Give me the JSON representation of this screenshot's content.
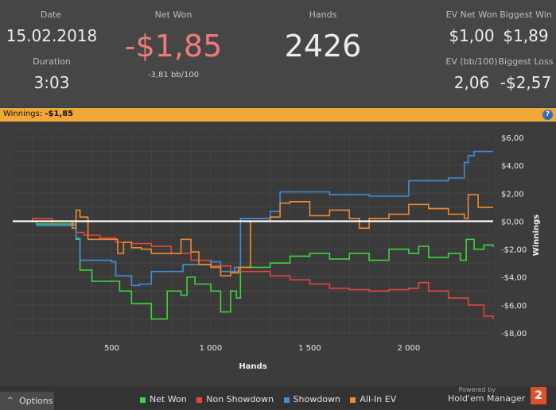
{
  "stats": {
    "date_label": "Date",
    "date_value": "15.02.2018",
    "duration_label": "Duration",
    "duration_value": "3:03",
    "net_won_label": "Net Won",
    "net_won_value": "-$1,85",
    "net_won_sub": "-3,81 bb/100",
    "hands_label": "Hands",
    "hands_value": "2426",
    "ev_net_won_label": "EV Net Won",
    "ev_net_won_value": "$1,00",
    "biggest_win_label": "Biggest Win",
    "biggest_win_value": "$1,89",
    "ev_bb_label": "EV (bb/100)",
    "ev_bb_value": "2,06",
    "biggest_loss_label": "Biggest Loss",
    "biggest_loss_value": "-$2,57"
  },
  "bar": {
    "title": "Winnings:",
    "value": "-$1,85",
    "help": "?"
  },
  "colors": {
    "net_won": "#3fd33f",
    "non_showdown": "#e8453c",
    "showdown": "#3a8fe0",
    "all_in_ev": "#ef8b2c",
    "net_won_value": "#f07a7a",
    "bar": "#f0a838"
  },
  "chart_data": {
    "type": "line",
    "title": "Winnings",
    "xlabel": "Hands",
    "ylabel": "Winnings",
    "xlim": [
      0,
      2426
    ],
    "ylim": [
      -8,
      6
    ],
    "x_ticks": [
      500,
      1000,
      1500,
      2000
    ],
    "x_tick_labels": [
      "500",
      "1 000",
      "1 500",
      "2 000"
    ],
    "y_ticks": [
      6,
      4,
      2,
      0,
      -2,
      -4,
      -6,
      -8
    ],
    "y_tick_labels": [
      "$6,00",
      "$4,00",
      "$2,00",
      "$0,00",
      "-$2,00",
      "-$4,00",
      "-$6,00",
      "-$8,00"
    ],
    "series": [
      {
        "name": "Net Won",
        "color": "#3fd33f",
        "x": [
          0,
          120,
          320,
          340,
          400,
          540,
          600,
          700,
          780,
          850,
          880,
          920,
          1000,
          1050,
          1100,
          1130,
          1150,
          1300,
          1400,
          1500,
          1600,
          1700,
          1800,
          1900,
          2000,
          2050,
          2100,
          2200,
          2260,
          2290,
          2330,
          2380,
          2426
        ],
        "y": [
          0,
          -0.2,
          -1.3,
          -3.5,
          -4.3,
          -5.0,
          -5.9,
          -7.0,
          -5.0,
          -5.3,
          -4.0,
          -4.5,
          -5.0,
          -6.5,
          -5.0,
          -5.5,
          -3.3,
          -3.0,
          -2.5,
          -2.3,
          -2.7,
          -2.3,
          -2.8,
          -2.0,
          -2.3,
          -1.8,
          -2.6,
          -2.3,
          -2.8,
          -1.3,
          -2.0,
          -1.7,
          -1.85
        ]
      },
      {
        "name": "Non Showdown",
        "color": "#e8453c",
        "x": [
          0,
          100,
          200,
          320,
          360,
          440,
          520,
          600,
          700,
          800,
          900,
          1000,
          1100,
          1200,
          1300,
          1400,
          1500,
          1600,
          1700,
          1800,
          1900,
          2000,
          2050,
          2100,
          2200,
          2300,
          2380,
          2426
        ],
        "y": [
          0,
          0.2,
          -0.3,
          -0.8,
          -1.0,
          -1.2,
          -1.5,
          -1.6,
          -1.8,
          -2.3,
          -2.8,
          -3.2,
          -3.6,
          -3.6,
          -3.9,
          -4.2,
          -4.5,
          -4.8,
          -4.9,
          -5.0,
          -4.9,
          -4.8,
          -4.4,
          -5.0,
          -5.5,
          -6.0,
          -6.8,
          -7.0
        ]
      },
      {
        "name": "Showdown",
        "color": "#3a8fe0",
        "x": [
          0,
          120,
          320,
          340,
          500,
          520,
          560,
          600,
          640,
          700,
          860,
          900,
          1000,
          1050,
          1120,
          1150,
          1300,
          1350,
          1400,
          1600,
          1800,
          2000,
          2100,
          2200,
          2280,
          2300,
          2330,
          2426
        ],
        "y": [
          0,
          -0.3,
          -1.2,
          -2.8,
          -2.9,
          -3.9,
          -3.9,
          -4.6,
          -4.5,
          -3.6,
          -3.1,
          -3.1,
          -2.9,
          -3.6,
          -3.3,
          0.2,
          0.7,
          2.1,
          2.1,
          1.9,
          1.8,
          2.9,
          2.9,
          3.1,
          4.2,
          4.7,
          5.0,
          5.0
        ]
      },
      {
        "name": "All-In EV",
        "color": "#ef8b2c",
        "x": [
          0,
          120,
          300,
          320,
          340,
          380,
          500,
          530,
          560,
          600,
          650,
          700,
          850,
          900,
          940,
          1000,
          1050,
          1100,
          1140,
          1200,
          1300,
          1350,
          1400,
          1500,
          1600,
          1700,
          1750,
          1800,
          1900,
          2000,
          2100,
          2200,
          2280,
          2300,
          2350,
          2426
        ],
        "y": [
          0,
          0,
          -0.5,
          0.8,
          0.3,
          -1.3,
          -1.3,
          -2.3,
          -1.5,
          -1.9,
          -2.0,
          -2.3,
          -1.3,
          -2.2,
          -3.1,
          -3.3,
          -3.9,
          -3.7,
          -3.3,
          0,
          0.3,
          1.3,
          1.4,
          0.4,
          0.8,
          0.2,
          -0.5,
          0.2,
          0.5,
          1.2,
          0.9,
          0.5,
          0.2,
          1.9,
          1.0,
          1.0
        ]
      }
    ]
  },
  "legend": [
    {
      "label": "Net Won",
      "color": "#3fd33f"
    },
    {
      "label": "Non Showdown",
      "color": "#e8453c"
    },
    {
      "label": "Showdown",
      "color": "#3a8fe0"
    },
    {
      "label": "All-In EV",
      "color": "#ef8b2c"
    }
  ],
  "footer": {
    "options_label": "Options",
    "options_icon": "^",
    "powered_by": "Powered by",
    "brand_name": "Hold'em Manager",
    "brand_logo": "2"
  }
}
